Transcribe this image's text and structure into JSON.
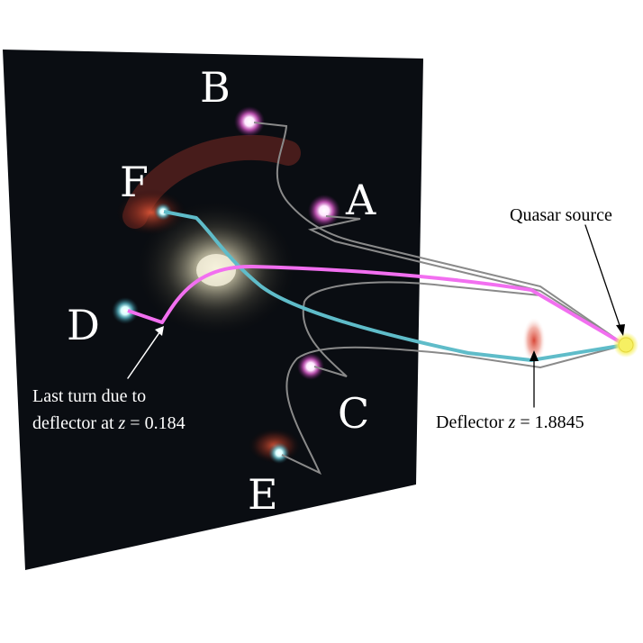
{
  "images": [
    {
      "id": "B",
      "label": "B"
    },
    {
      "id": "A",
      "label": "A"
    },
    {
      "id": "F",
      "label": "F"
    },
    {
      "id": "D",
      "label": "D"
    },
    {
      "id": "C",
      "label": "C"
    },
    {
      "id": "E",
      "label": "E"
    }
  ],
  "annotations": {
    "quasar_source": "Quasar source",
    "deflector_prefix": "Deflector ",
    "deflector_var": "z",
    "deflector_value": " = 1.8845",
    "last_turn_line1": "Last turn due to",
    "last_turn_line2_prefix": "deflector at ",
    "last_turn_var": "z",
    "last_turn_value": " = 0.184"
  },
  "colors": {
    "panel_background": "#0a0d12",
    "ray_pink": "#f26ff0",
    "ray_cyan": "#5fbcc9",
    "ray_gray": "#8a8a8a",
    "quasar": "#f6f062",
    "deflector_glow": "#e25545",
    "central_galaxy": "#e8e4c8"
  }
}
